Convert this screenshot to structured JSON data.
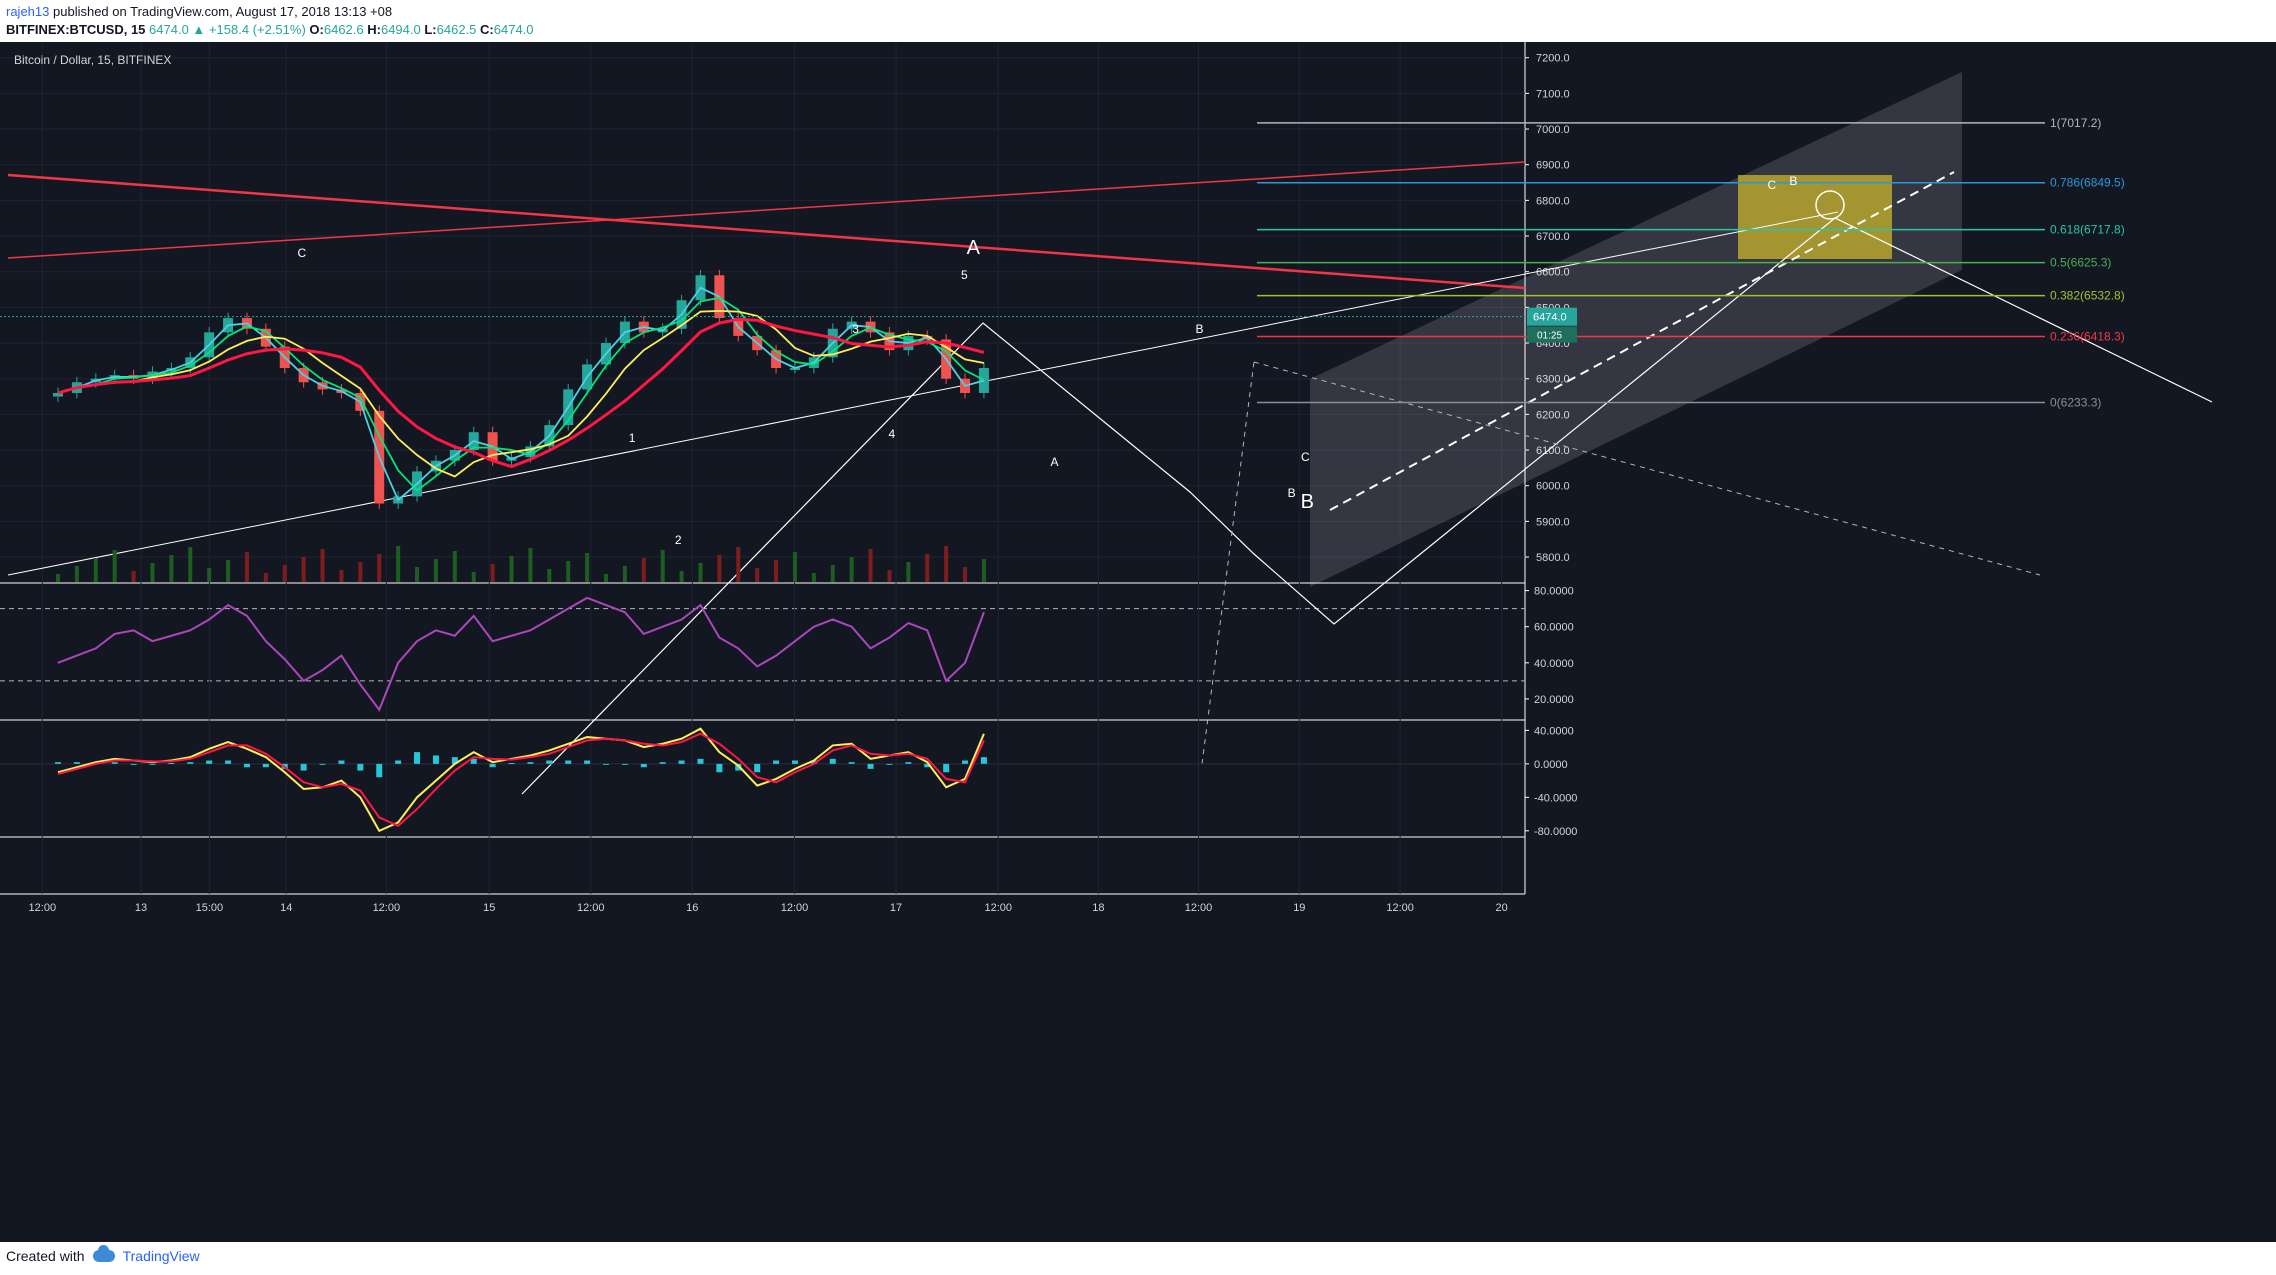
{
  "header": {
    "user": "rajeh13",
    "published": "published on TradingView.com, August 17, 2018 13:13 +08",
    "symbol": "BITFINEX:BTCUSD, 15",
    "last": "6474.0",
    "change": "+158.4 (+2.51%)",
    "o_label": "O:",
    "o_value": "6462.6",
    "h_label": "H:",
    "h_value": "6494.0",
    "l_label": "L:",
    "l_value": "6462.5",
    "c_label": "C:",
    "c_value": "6474.0"
  },
  "chart_title": "Bitcoin / Dollar, 15, BITFINEX",
  "colors": {
    "background": "#131722",
    "up": "#26a69a",
    "down": "#ef5350",
    "ema_fast": "#4dd0e1",
    "ema_mid": "#00e676",
    "ema_slow": "#ffee58",
    "ema_long": "#ff1744",
    "rsi": "#ab47bc",
    "macd": "#ffee58",
    "signal": "#ff1744",
    "hist": "#26c6da",
    "fib_zone": "#c9b52c"
  },
  "price_badge": {
    "price": "6474.0",
    "timer": "01:25"
  },
  "chart_data": [
    {
      "type": "candlestick",
      "title": "Bitcoin / Dollar, 15, BITFINEX",
      "ylim": [
        5730,
        7230
      ],
      "y_ticks": [
        "7200.0",
        "7100.0",
        "7000.0",
        "6900.0",
        "6800.0",
        "6700.0",
        "6600.0",
        "6500.0",
        "6400.0",
        "6300.0",
        "6200.0",
        "6100.0",
        "6000.0",
        "5900.0",
        "5800.0"
      ],
      "x_ticks": [
        "12:00",
        "13",
        "15:00",
        "14",
        "12:00",
        "15",
        "12:00",
        "16",
        "12:00",
        "17",
        "12:00",
        "18",
        "12:00",
        "19",
        "12:00",
        "20"
      ],
      "x": [
        0,
        4,
        8,
        12,
        16,
        20,
        24,
        28,
        32,
        36,
        40,
        44,
        48,
        52,
        56,
        60,
        64,
        68,
        72,
        76,
        80,
        84,
        88,
        92,
        96,
        100,
        104,
        108,
        112,
        116,
        120,
        124,
        128,
        132,
        136,
        140,
        144,
        148,
        152,
        156,
        160,
        164,
        168,
        172,
        176,
        180,
        184,
        188,
        192,
        196
      ],
      "close": [
        6260,
        6290,
        6300,
        6310,
        6300,
        6320,
        6330,
        6360,
        6430,
        6470,
        6440,
        6390,
        6330,
        6290,
        6270,
        6260,
        6210,
        5950,
        5970,
        6040,
        6070,
        6100,
        6150,
        6070,
        6080,
        6110,
        6170,
        6270,
        6340,
        6400,
        6460,
        6430,
        6440,
        6520,
        6590,
        6470,
        6420,
        6380,
        6330,
        6330,
        6360,
        6440,
        6460,
        6430,
        6380,
        6420,
        6410,
        6300,
        6260,
        6330
      ],
      "last_price": 6474.0,
      "fibonacci": [
        {
          "level": "1(7017.2)",
          "price": 7017.2
        },
        {
          "level": "0.786(6849.5)",
          "price": 6849.5
        },
        {
          "level": "0.618(6717.8)",
          "price": 6717.8
        },
        {
          "level": "0.5(6625.3)",
          "price": 6625.3
        },
        {
          "level": "0.382(6532.8)",
          "price": 6532.8
        },
        {
          "level": "0.236(6418.3)",
          "price": 6418.3
        },
        {
          "level": "0(6233.3)",
          "price": 6233.3
        }
      ],
      "wave_labels": [
        "C",
        "1",
        "2",
        "3",
        "4",
        "5",
        "A",
        "A",
        "B",
        "B",
        "C",
        "B",
        "C",
        "B"
      ]
    },
    {
      "type": "line",
      "title": "RSI",
      "ylim": [
        10,
        82
      ],
      "y_ticks": [
        "80.0000",
        "60.0000",
        "40.0000",
        "20.0000"
      ],
      "bands": [
        70,
        30
      ],
      "x": [
        0,
        4,
        8,
        12,
        16,
        20,
        24,
        28,
        32,
        36,
        40,
        44,
        48,
        52,
        56,
        60,
        64,
        68,
        72,
        76,
        80,
        84,
        88,
        92,
        96,
        100,
        104,
        108,
        112,
        116,
        120,
        124,
        128,
        132,
        136,
        140,
        144,
        148,
        152,
        156,
        160,
        164,
        168,
        172,
        176,
        180,
        184,
        188,
        192,
        196
      ],
      "values": [
        40,
        44,
        48,
        56,
        58,
        52,
        55,
        58,
        64,
        72,
        66,
        52,
        42,
        30,
        36,
        44,
        28,
        14,
        40,
        52,
        58,
        55,
        66,
        52,
        55,
        58,
        64,
        70,
        76,
        72,
        68,
        56,
        60,
        64,
        72,
        54,
        48,
        38,
        44,
        52,
        60,
        64,
        60,
        48,
        54,
        62,
        58,
        30,
        40,
        68
      ]
    },
    {
      "type": "line",
      "title": "MACD",
      "ylim": [
        -85,
        50
      ],
      "y_ticks": [
        "40.0000",
        "0.0000",
        "-40.0000",
        "-80.0000"
      ],
      "x": [
        0,
        4,
        8,
        12,
        16,
        20,
        24,
        28,
        32,
        36,
        40,
        44,
        48,
        52,
        56,
        60,
        64,
        68,
        72,
        76,
        80,
        84,
        88,
        92,
        96,
        100,
        104,
        108,
        112,
        116,
        120,
        124,
        128,
        132,
        136,
        140,
        144,
        148,
        152,
        156,
        160,
        164,
        168,
        172,
        176,
        180,
        184,
        188,
        192,
        196
      ],
      "series": [
        {
          "values": [
            -10,
            -4,
            2,
            6,
            4,
            2,
            4,
            8,
            18,
            26,
            18,
            8,
            -10,
            -30,
            -28,
            -20,
            -40,
            -80,
            -70,
            -40,
            -20,
            0,
            14,
            2,
            6,
            10,
            16,
            24,
            32,
            30,
            28,
            20,
            24,
            30,
            42,
            14,
            -2,
            -26,
            -18,
            -6,
            4,
            22,
            24,
            6,
            10,
            14,
            2,
            -28,
            -18,
            36
          ]
        },
        {
          "values": [
            -12,
            -6,
            0,
            4,
            4,
            3,
            3,
            6,
            14,
            22,
            22,
            12,
            -4,
            -22,
            -28,
            -24,
            -32,
            -64,
            -74,
            -54,
            -30,
            -8,
            8,
            6,
            5,
            8,
            12,
            20,
            28,
            30,
            28,
            24,
            22,
            26,
            36,
            24,
            6,
            -16,
            -22,
            -10,
            0,
            16,
            22,
            12,
            10,
            12,
            6,
            -18,
            -22,
            28
          ]
        }
      ]
    }
  ],
  "footer": {
    "created": "Created with",
    "brand": "TradingView"
  }
}
